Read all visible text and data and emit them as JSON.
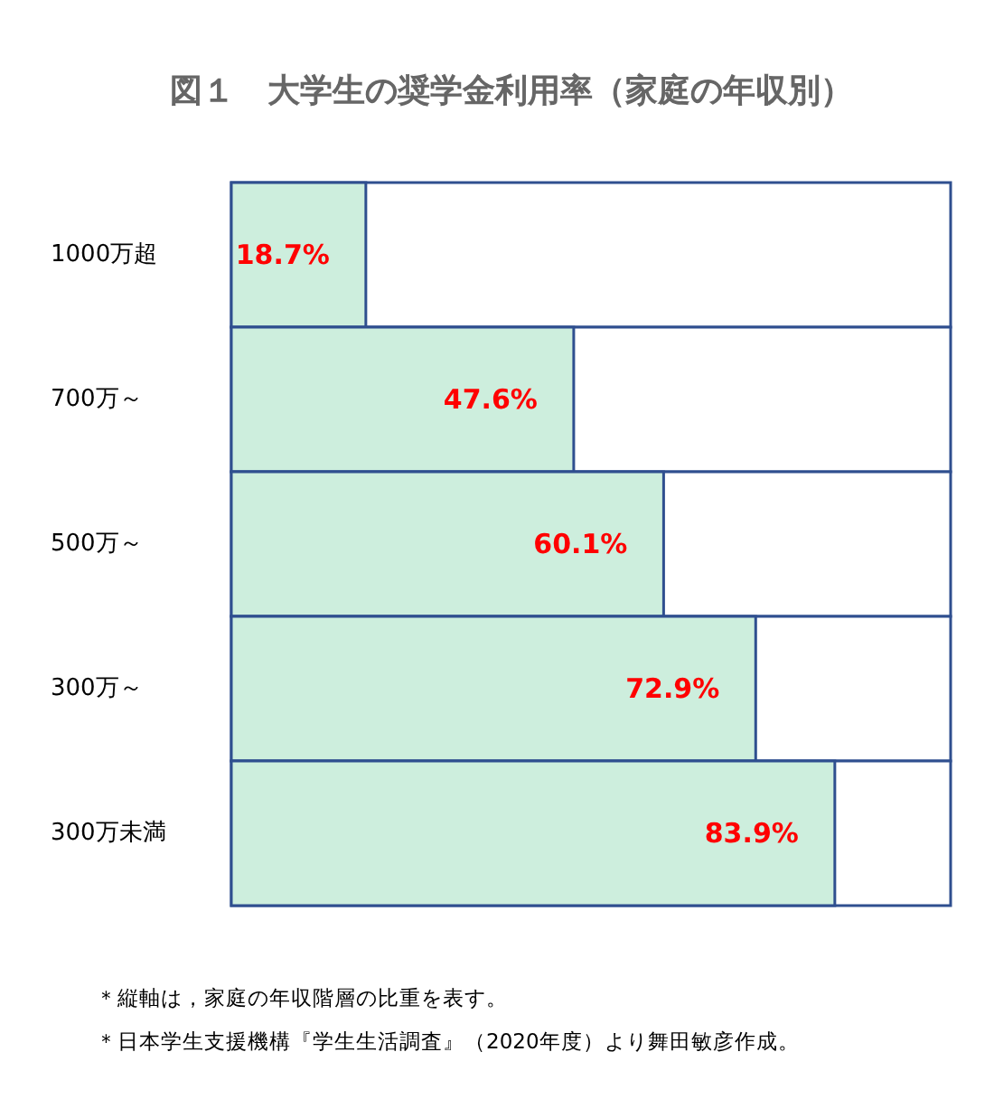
{
  "chart_data": {
    "type": "bar",
    "orientation": "horizontal",
    "title": "図１　大学生の奨学金利用率（家庭の年収別）",
    "categories": [
      "1000万超",
      "700万～",
      "500万～",
      "300万～",
      "300万未満"
    ],
    "values": [
      18.7,
      47.6,
      60.1,
      72.9,
      83.9
    ],
    "value_labels": [
      "18.7%",
      "47.6%",
      "60.1%",
      "72.9%",
      "83.9%"
    ],
    "color": "#cdeedd",
    "xlim": [
      0,
      100
    ],
    "tick_labels": "y",
    "grid": false,
    "annotations": [
      "＊縦軸は，家庭の年収階層の比重を表す。",
      "＊日本学生支援機構『学生生活調査』（2020年度）より舞田敏彦作成。"
    ]
  }
}
